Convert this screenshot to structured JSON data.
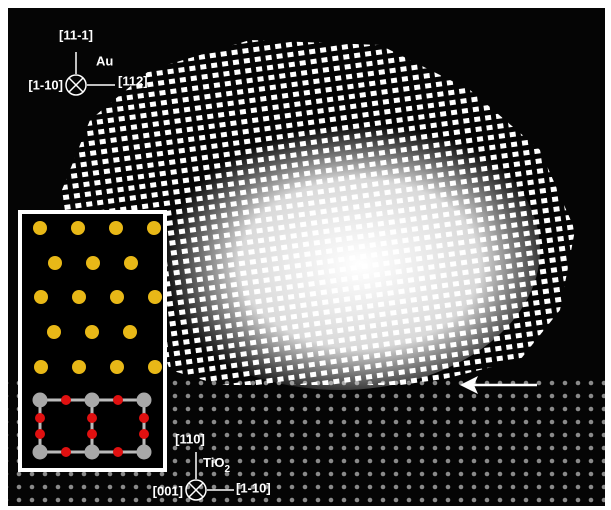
{
  "au_axes": {
    "up": "[11-1]",
    "label": "Au",
    "left": "[1-10]",
    "right": "[112]"
  },
  "tio2_axes": {
    "up": "[110]",
    "label": "TiO",
    "label_subscript": "2",
    "left": "[001]",
    "right": "[1-10]"
  }
}
